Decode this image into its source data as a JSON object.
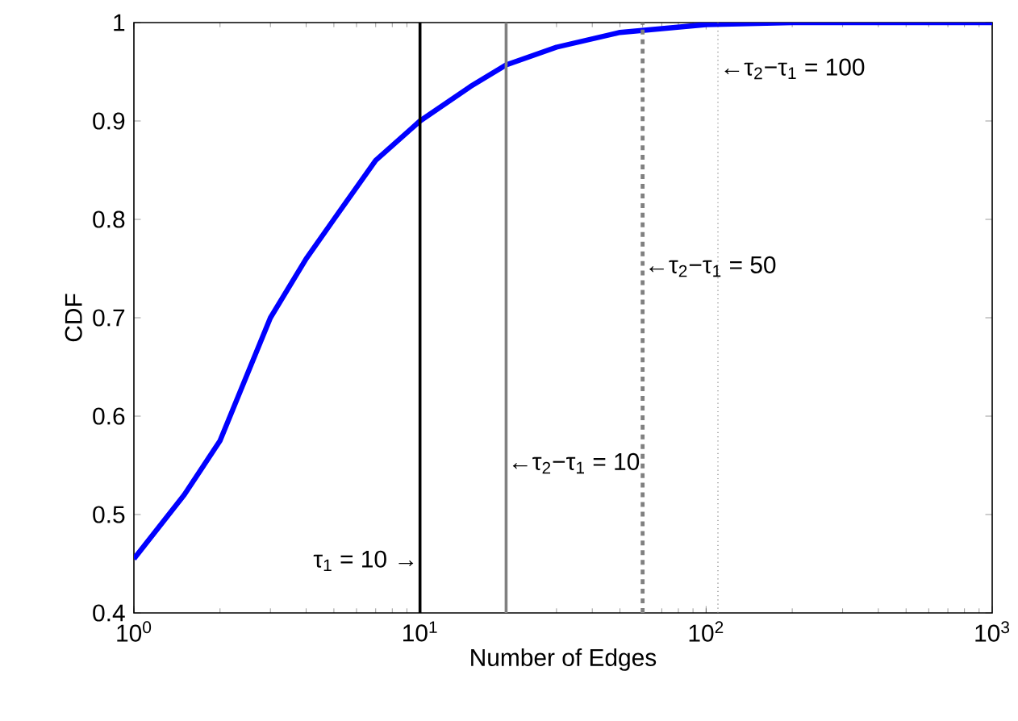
{
  "chart_data": {
    "type": "line",
    "xlabel": "Number of Edges",
    "ylabel": "CDF",
    "log": "x",
    "x": [
      1,
      1.5,
      2,
      3,
      4,
      5,
      7,
      10,
      15,
      20,
      30,
      50,
      100,
      200,
      1000
    ],
    "series": [
      {
        "color": "#0000ff",
        "values": [
          0.455,
          0.52,
          0.575,
          0.7,
          0.76,
          0.8,
          0.86,
          0.9,
          0.935,
          0.957,
          0.975,
          0.99,
          0.998,
          1,
          1
        ]
      }
    ],
    "xlim": [
      1,
      1000
    ],
    "ylim": [
      0.4,
      1
    ],
    "xticks": [
      {
        "value": 1,
        "label": "10$^{0}$"
      },
      {
        "value": 10,
        "label": "10$^{1}$"
      },
      {
        "value": 100,
        "label": "10$^{2}$"
      },
      {
        "value": 1000,
        "label": "10$^{3}$"
      }
    ],
    "yticks": [
      0.4,
      0.5,
      0.6,
      0.7,
      0.8,
      0.9,
      1
    ],
    "grid": false,
    "marker": "none",
    "line_style": "solid",
    "ref_lines": [
      {
        "axis": "x",
        "value": 10,
        "color": "#000000",
        "line_style": "solid"
      },
      {
        "axis": "x",
        "value": 20,
        "color": "#808080",
        "line_style": "solid"
      },
      {
        "axis": "x",
        "value": 60,
        "color": "#808080",
        "line_style": "dashed"
      },
      {
        "axis": "x",
        "value": 110,
        "color": "#808080",
        "line_style": "dotted"
      }
    ],
    "annotations": [
      {
        "text": "τ$_{1}$ = 10 →",
        "x": 10,
        "y": 0.453
      },
      {
        "text": "←τ$_{2}$−τ$_{1}$ = 10",
        "x": 20,
        "y": 0.552
      },
      {
        "text": "←τ$_{2}$−τ$_{1}$ = 50",
        "x": 60,
        "y": 0.752
      },
      {
        "text": "←τ$_{2}$−τ$_{1}$ = 100",
        "x": 110,
        "y": 0.953
      }
    ]
  }
}
